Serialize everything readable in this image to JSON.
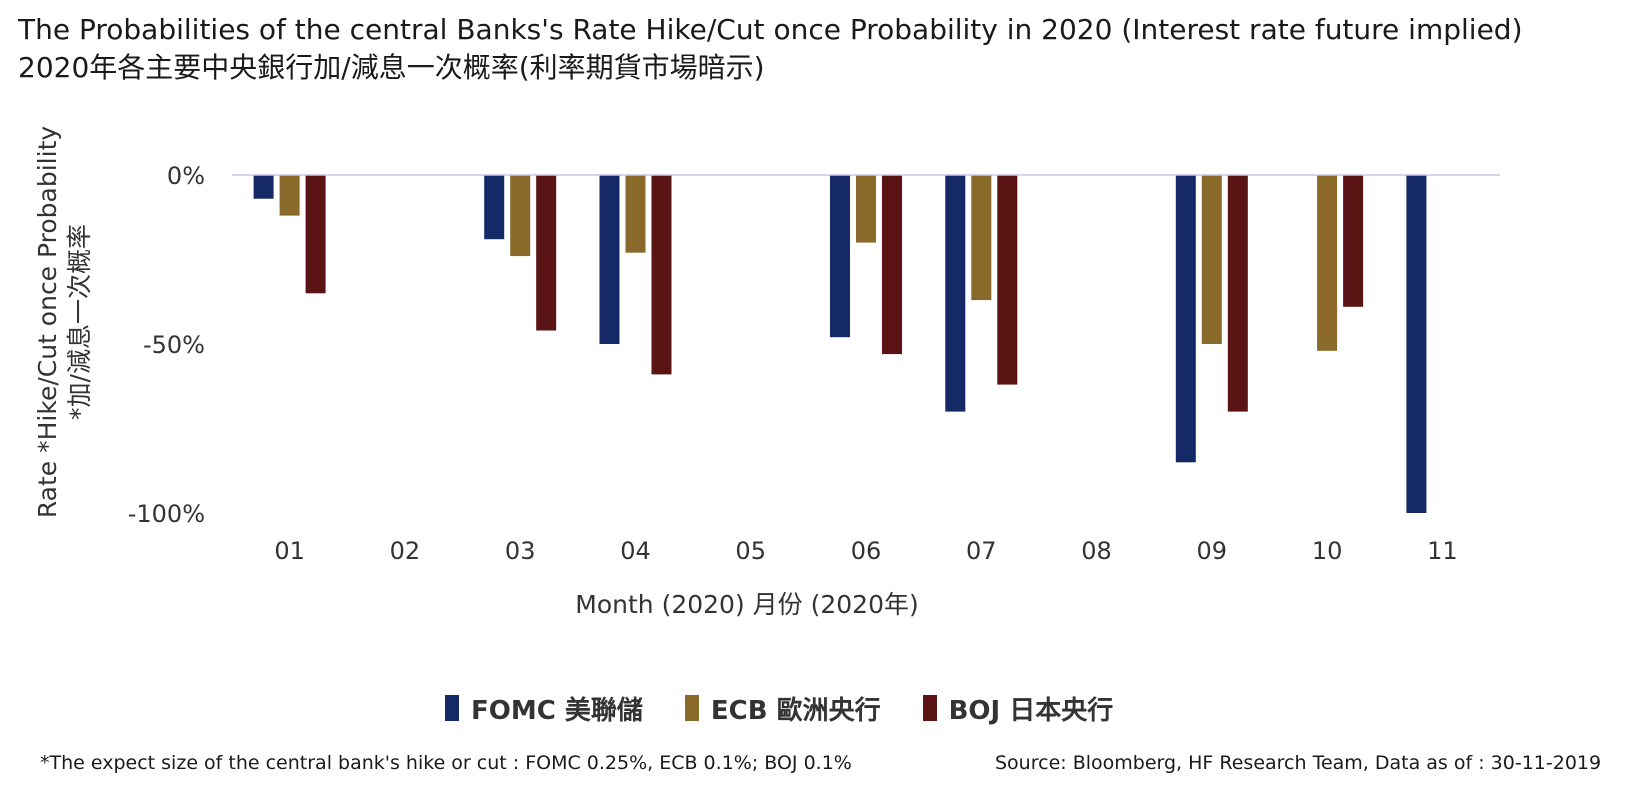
{
  "title": "The Probabilities of  the central Banks's Rate Hike/Cut once Probability in 2020 (Interest rate future implied)",
  "title_zh": "2020年各主要中央銀行加/減息一次概率(利率期貨市場暗示)",
  "footnote": "*The expect size of the central bank's hike or cut : FOMC 0.25%, ECB 0.1%; BOJ 0.1%",
  "source": "Source: Bloomberg, HF Research Team, Data as of : 30-11-2019",
  "colors": {
    "FOMC": "#142966",
    "ECB": "#8a6a2a",
    "BOJ": "#5a1414",
    "zero_line": "#c9c5e8"
  },
  "chart_data": {
    "type": "bar",
    "xlabel": "Month (2020) 月份 (2020年)",
    "ylabel": "Rate *Hike/Cut once Probability",
    "ylabel_zh": "*加/減息一次概率",
    "categories": [
      "01",
      "02",
      "03",
      "04",
      "05",
      "06",
      "07",
      "08",
      "09",
      "10",
      "11"
    ],
    "yticks": [
      "0%",
      "-50%",
      "-100%"
    ],
    "ylim": [
      -100,
      0
    ],
    "grid": false,
    "legend_position": "bottom",
    "series": [
      {
        "name": "FOMC 美聯儲",
        "key": "FOMC",
        "values": [
          -7,
          null,
          -19,
          -50,
          null,
          -48,
          -70,
          null,
          -85,
          null,
          -100
        ]
      },
      {
        "name": "ECB 歐洲央行",
        "key": "ECB",
        "values": [
          -12,
          null,
          -24,
          -23,
          null,
          -20,
          -37,
          null,
          -50,
          -52,
          null
        ]
      },
      {
        "name": "BOJ 日本央行",
        "key": "BOJ",
        "values": [
          -35,
          null,
          -46,
          -59,
          null,
          -53,
          -62,
          null,
          -70,
          -39,
          null
        ]
      }
    ]
  }
}
